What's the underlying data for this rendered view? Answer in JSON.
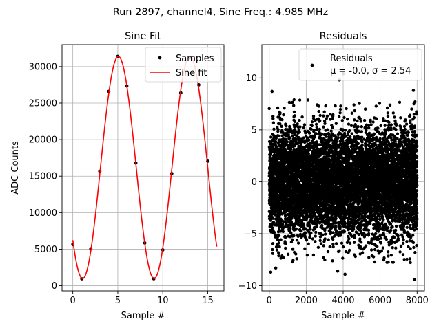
{
  "figure": {
    "suptitle": "Run 2897, channel4, Sine Freq.: 4.985 MHz"
  },
  "chart_data": [
    {
      "type": "scatter",
      "title": "Sine Fit",
      "xlabel": "Sample #",
      "ylabel": "ADC Counts",
      "xlim": [
        -1.2,
        16.8
      ],
      "ylim": [
        -700,
        33000
      ],
      "xticks": [
        0,
        5,
        10,
        15
      ],
      "yticks": [
        0,
        5000,
        10000,
        15000,
        20000,
        25000,
        30000
      ],
      "grid": true,
      "legend_position": "top-right",
      "series": [
        {
          "name": "Samples",
          "kind": "scatter",
          "color": "#000000",
          "x": [
            0,
            1,
            2,
            3,
            4,
            5,
            6,
            7,
            8,
            9,
            10,
            11,
            12,
            13,
            14,
            15
          ],
          "y": [
            5650,
            950,
            5050,
            15650,
            26600,
            31400,
            27350,
            16800,
            5850,
            950,
            4900,
            15350,
            26400,
            31200,
            27500,
            17050
          ]
        },
        {
          "name": "Sine fit",
          "kind": "line",
          "color": "#ff0000",
          "function": {
            "amplitude": 15210,
            "offset": 16190,
            "period": 7.95,
            "peak_x": 5.06,
            "x_range": [
              0,
              16
            ]
          }
        }
      ]
    },
    {
      "type": "scatter",
      "title": "Residuals",
      "xlabel": "Sample #",
      "ylabel": "",
      "xlim": [
        -400,
        8400
      ],
      "ylim": [
        -10.5,
        13.2
      ],
      "xticks": [
        0,
        2000,
        4000,
        6000,
        8000
      ],
      "yticks": [
        -10,
        -5,
        0,
        5,
        10
      ],
      "grid": true,
      "legend_position": "top-right",
      "series": [
        {
          "name": "Residuals",
          "legend_line2": "μ = -0.0, σ = 2.54",
          "kind": "scatter",
          "color": "#000000",
          "n_points": 8000,
          "x_range": [
            0,
            8000
          ],
          "mean": 0.0,
          "std": 2.54,
          "outliers": [
            {
              "x": 4000,
              "y": 10.4
            },
            {
              "x": 3800,
              "y": 9.8
            },
            {
              "x": 150,
              "y": 8.7
            },
            {
              "x": 7800,
              "y": 8.8
            },
            {
              "x": 4100,
              "y": -8.9
            },
            {
              "x": 350,
              "y": -8.3
            },
            {
              "x": 80,
              "y": -8.7
            },
            {
              "x": 7850,
              "y": -9.4
            },
            {
              "x": 3700,
              "y": -8.6
            },
            {
              "x": 2600,
              "y": 7.4
            },
            {
              "x": 5200,
              "y": 7.0
            }
          ]
        }
      ]
    }
  ]
}
